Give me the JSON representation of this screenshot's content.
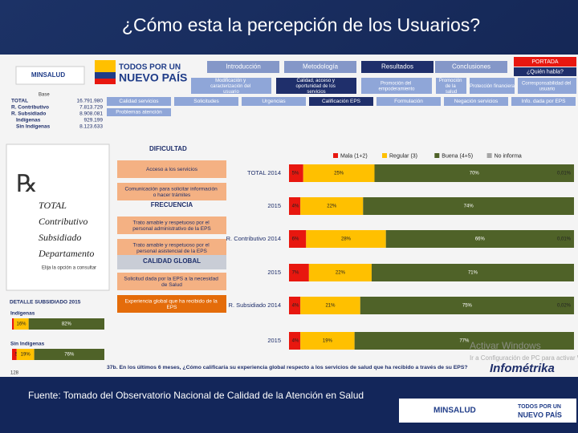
{
  "title": "¿Cómo esta la percepción de los Usuarios?",
  "footer": "Fuente: Tomado del Observatorio Nacional de Calidad de la Atención en Salud",
  "logos": {
    "minsalud": "MINSALUD",
    "todos": "TODOS POR UN",
    "nuevo": "NUEVO PAÍS"
  },
  "nav": {
    "tabs": [
      "Introducción",
      "Metodología",
      "Resultados",
      "Conclusiones"
    ],
    "portada": "PORTADA",
    "quien": "¿Quién habla?",
    "subtabs": [
      "Modificación y caracterización del usuario",
      "Calidad, acceso y oportunidad de los servicios",
      "Promoción del empoderamiento",
      "Promoción de la salud",
      "Protección financiera",
      "Corresponsabilidad del usuario"
    ],
    "items": [
      "Calidad servicios",
      "Solicitudes",
      "Urgencias",
      "Calificación EPS",
      "Formulación",
      "Negación servicios",
      "Info. dada por EPS"
    ],
    "problemas": "Problemas atención"
  },
  "stats": {
    "header": "Base",
    "rows": [
      [
        "TOTAL",
        "16.791.980"
      ],
      [
        "R. Contributivo",
        "7.813.729"
      ],
      [
        "R. Subsidiado",
        "8.908.081"
      ],
      [
        "Indígenas",
        "929.199"
      ],
      [
        "Sin Indígenas",
        "8.123.633"
      ]
    ]
  },
  "menu": [
    {
      "header": "DIFICULTAD"
    },
    {
      "item": "Acceso a los servicios"
    },
    {
      "item": "Comunicación para solicitar información o hacer trámites"
    },
    {
      "header": "FRECUENCIA"
    },
    {
      "item": "Trato amable y respetuoso por el personal administrativo de la EPS"
    },
    {
      "item": "Trato amable y respetuoso por el personal asistencial de la EPS"
    },
    {
      "header": "CALIDAD GLOBAL"
    },
    {
      "item": "Solicitud dada por la EPS a la necesidad de Salud"
    },
    {
      "item": "Experiencia global que ha recibido de la EPS"
    }
  ],
  "selector": {
    "options": [
      "TOTAL",
      "Contributivo",
      "Subsidiado",
      "Departamento"
    ],
    "hint": "Elija la opción a consultar"
  },
  "page_number": "128",
  "watermark": [
    "Activar Windows",
    "Ir a Configuración de PC para activar Windows"
  ],
  "brand": "Infométrika",
  "chart_data": [
    {
      "type": "bar",
      "stacked": true,
      "orientation": "horizontal",
      "title": "37b. En los últimos 6 meses, ¿Cómo calificaría su experiencia global respecto a los servicios de salud que ha recibido a través de su EPS?",
      "categories": [
        "TOTAL 2014",
        "2015",
        "R. Contributivo 2014",
        "2015",
        "R. Subsidiado 2014",
        "2015"
      ],
      "xlim": [
        0,
        100
      ],
      "legend": "top",
      "series": [
        {
          "name": "Mala (1+2)",
          "color": "#e8170f",
          "values": [
            5,
            4,
            6,
            7,
            4,
            4
          ],
          "value_labels": [
            "5%",
            "4%",
            "6%",
            "7%",
            "4%",
            "4%"
          ]
        },
        {
          "name": "Regular (3)",
          "color": "#ffc000",
          "values": [
            25,
            22,
            28,
            22,
            21,
            19
          ],
          "value_labels": [
            "25%",
            "22%",
            "28%",
            "22%",
            "21%",
            "19%"
          ]
        },
        {
          "name": "Buena (4+5)",
          "color": "#4f6228",
          "values": [
            70,
            74,
            66,
            71,
            75,
            77
          ],
          "value_labels": [
            "70%",
            "74%",
            "66%",
            "71%",
            "75%",
            "77%"
          ]
        },
        {
          "name": "No informa",
          "color": "#a6a6a6",
          "values": [
            0.01,
            null,
            0.01,
            null,
            0.02,
            null
          ],
          "value_labels": [
            "0,01%",
            null,
            "0,01%",
            null,
            "0,02%",
            null
          ]
        }
      ]
    },
    {
      "type": "bar",
      "stacked": true,
      "orientation": "horizontal",
      "title": "DETALLE SUBSIDIADO 2015",
      "categories": [
        "Indígenas",
        "Sin Indígenas"
      ],
      "xlim": [
        0,
        100
      ],
      "series": [
        {
          "color": "#e8170f",
          "values": [
            2,
            5
          ],
          "value_labels": [
            "2%",
            "5%"
          ]
        },
        {
          "color": "#ffc000",
          "values": [
            16,
            19
          ],
          "value_labels": [
            "16%",
            "19%"
          ]
        },
        {
          "color": "#4f6228",
          "values": [
            82,
            76
          ],
          "value_labels": [
            "82%",
            "76%"
          ]
        }
      ]
    }
  ]
}
